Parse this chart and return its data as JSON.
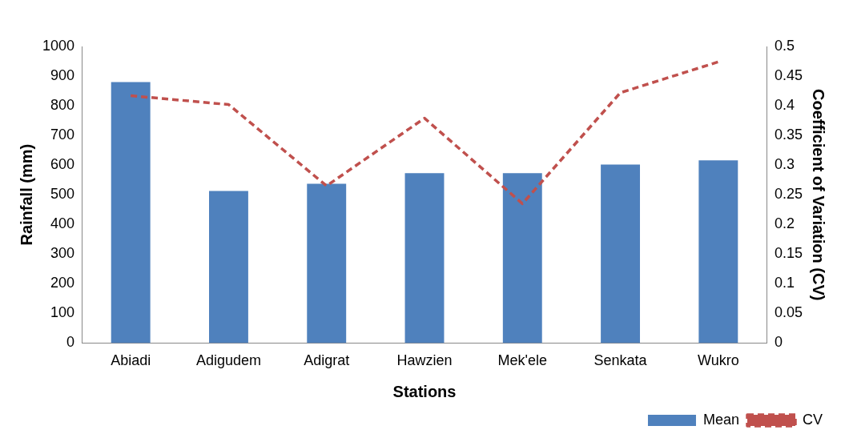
{
  "chart_data": {
    "type": "bar",
    "xlabel": "Stations",
    "ylabel": "Rainfall (mm)",
    "y2label": "Coefficient of Variation (CV)",
    "categories": [
      "Abiadi",
      "Adigudem",
      "Adigrat",
      "Hawzien",
      "Mek'ele",
      "Senkata",
      "Wukro"
    ],
    "series": [
      {
        "name": "Mean",
        "color": "#4f81bd",
        "values": [
          880,
          513,
          537,
          573,
          573,
          602,
          616
        ]
      },
      {
        "name": "CV",
        "type": "line",
        "axis": "y2",
        "color": "#c0504d",
        "line_style": "dashed",
        "marker": "none",
        "values": [
          0.417,
          0.402,
          0.265,
          0.379,
          0.235,
          0.422,
          0.474
        ]
      }
    ],
    "ylim": [
      0,
      1000
    ],
    "yticks": [
      0,
      100,
      200,
      300,
      400,
      500,
      600,
      700,
      800,
      900,
      1000
    ],
    "y2lim": [
      0,
      0.5
    ],
    "y2ticks": [
      0,
      0.05,
      0.1,
      0.15,
      0.2,
      0.25,
      0.3,
      0.35,
      0.4,
      0.45,
      0.5
    ],
    "grid": false,
    "legend": "bottom right"
  }
}
